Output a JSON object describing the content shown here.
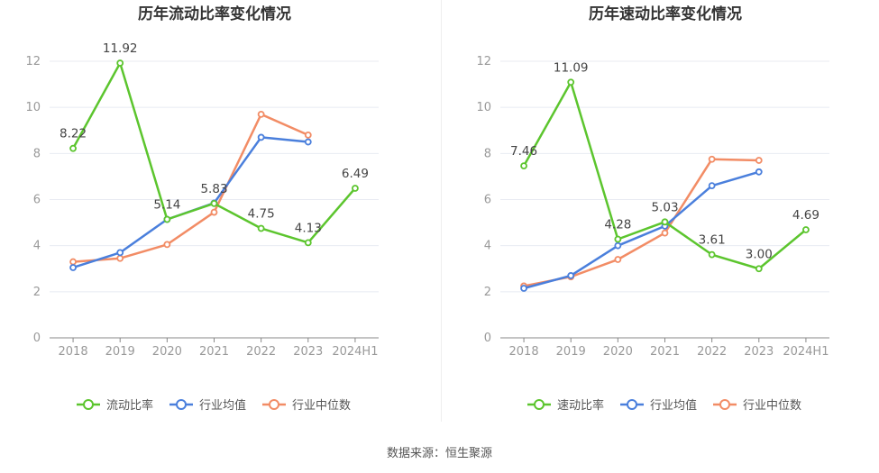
{
  "footer": {
    "source": "数据来源：恒生聚源"
  },
  "colors": {
    "main": "#5cc52e",
    "avg": "#4a7fdc",
    "median": "#f28c65",
    "grid": "#e8ebf2",
    "axis": "#999999",
    "text": "#444444"
  },
  "chart_data": [
    {
      "type": "line",
      "title": "历年流动比率变化情况",
      "categories": [
        "2018",
        "2019",
        "2020",
        "2021",
        "2022",
        "2023",
        "2024H1"
      ],
      "ylim": [
        0,
        12
      ],
      "yticks": [
        "0",
        "2",
        "4",
        "6",
        "8",
        "10",
        "12"
      ],
      "grid": true,
      "legend_position": "bottom",
      "series": [
        {
          "name": "流动比率",
          "color": "#5cc52e",
          "values": [
            8.22,
            11.92,
            5.14,
            5.83,
            4.75,
            4.13,
            6.49
          ],
          "labels": [
            "8.22",
            "11.92",
            "5.14",
            "5.83",
            "4.75",
            "4.13",
            "6.49"
          ]
        },
        {
          "name": "行业均值",
          "color": "#4a7fdc",
          "values": [
            3.05,
            3.7,
            5.14,
            5.85,
            8.7,
            8.5,
            null
          ]
        },
        {
          "name": "行业中位数",
          "color": "#f28c65",
          "values": [
            3.3,
            3.45,
            4.05,
            5.45,
            9.7,
            8.8,
            null
          ]
        }
      ]
    },
    {
      "type": "line",
      "title": "历年速动比率变化情况",
      "categories": [
        "2018",
        "2019",
        "2020",
        "2021",
        "2022",
        "2023",
        "2024H1"
      ],
      "ylim": [
        0,
        12
      ],
      "yticks": [
        "0",
        "2",
        "4",
        "6",
        "8",
        "10",
        "12"
      ],
      "grid": true,
      "legend_position": "bottom",
      "series": [
        {
          "name": "速动比率",
          "color": "#5cc52e",
          "values": [
            7.46,
            11.09,
            4.28,
            5.03,
            3.61,
            3.0,
            4.69
          ],
          "labels": [
            "7.46",
            "11.09",
            "4.28",
            "5.03",
            "3.61",
            "3.00",
            "4.69"
          ]
        },
        {
          "name": "行业均值",
          "color": "#4a7fdc",
          "values": [
            2.15,
            2.7,
            4.0,
            4.85,
            6.6,
            7.2,
            null
          ]
        },
        {
          "name": "行业中位数",
          "color": "#f28c65",
          "values": [
            2.25,
            2.65,
            3.4,
            4.55,
            7.75,
            7.7,
            null
          ]
        }
      ]
    }
  ]
}
